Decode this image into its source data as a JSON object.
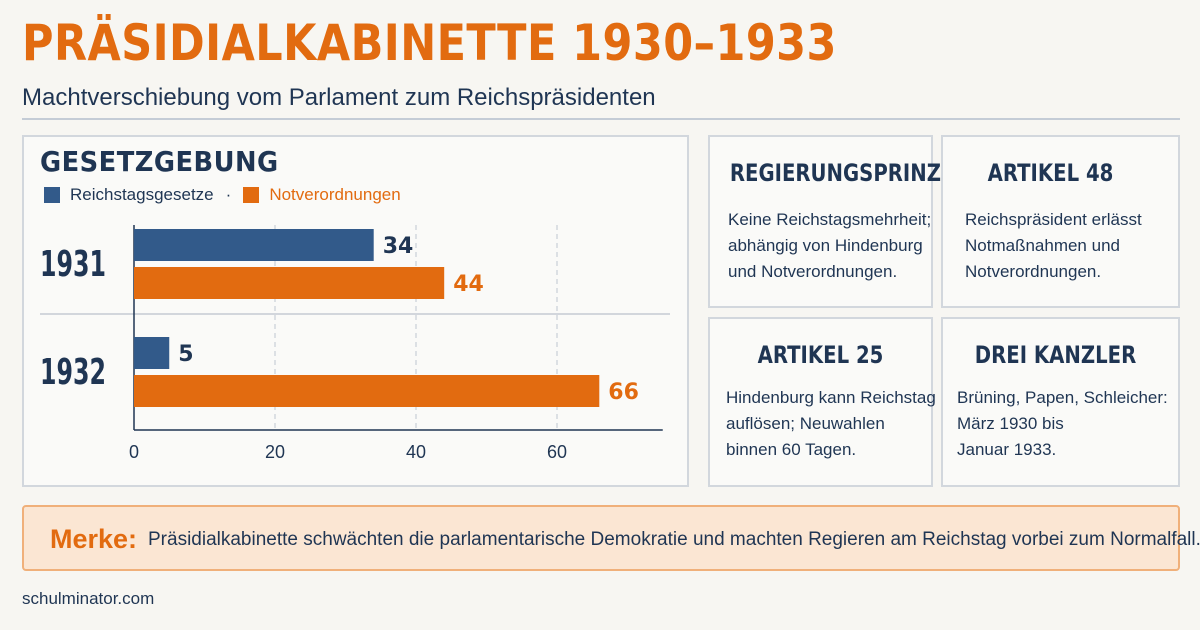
{
  "header": {
    "title": "PRÄSIDIALKABINETTE 1930–1933",
    "subtitle": "Machtverschiebung vom Parlament zum Reichspräsidenten"
  },
  "chart_data": {
    "type": "bar",
    "orientation": "horizontal",
    "title": "GESETZGEBUNG",
    "categories": [
      "1931",
      "1932"
    ],
    "series": [
      {
        "name": "Reichstagsgesetze",
        "color": "#325a8a",
        "values": [
          34,
          5
        ]
      },
      {
        "name": "Notverordnungen",
        "color": "#e26b10",
        "values": [
          44,
          66
        ]
      }
    ],
    "xticks": [
      0,
      20,
      40,
      60
    ],
    "xlim": [
      0,
      75
    ],
    "grid": true,
    "legend": "top-left",
    "legend_separator": "·"
  },
  "cards": [
    {
      "title": "REGIERUNGSPRINZIP",
      "lines": [
        "Keine Reichstagsmehrheit;",
        "abhängig von Hindenburg",
        "und Notverordnungen."
      ]
    },
    {
      "title": "ARTIKEL 48",
      "lines": [
        "Reichspräsident erlässt",
        "Notmaßnahmen und",
        "Notverordnungen."
      ]
    },
    {
      "title": "ARTIKEL 25",
      "lines": [
        "Hindenburg kann Reichstag",
        "auflösen; Neuwahlen",
        "binnen 60 Tagen."
      ]
    },
    {
      "title": "DREI KANZLER",
      "lines": [
        "Brüning, Papen, Schleicher:",
        "März 1930 bis",
        "Januar 1933."
      ]
    }
  ],
  "merke": {
    "label": "Merke:",
    "text": "Präsidialkabinette schwächten die parlamentarische Demokratie und machten Regieren am Reichstag vorbei zum Normalfall."
  },
  "footer": {
    "source": "schulminator.com"
  }
}
